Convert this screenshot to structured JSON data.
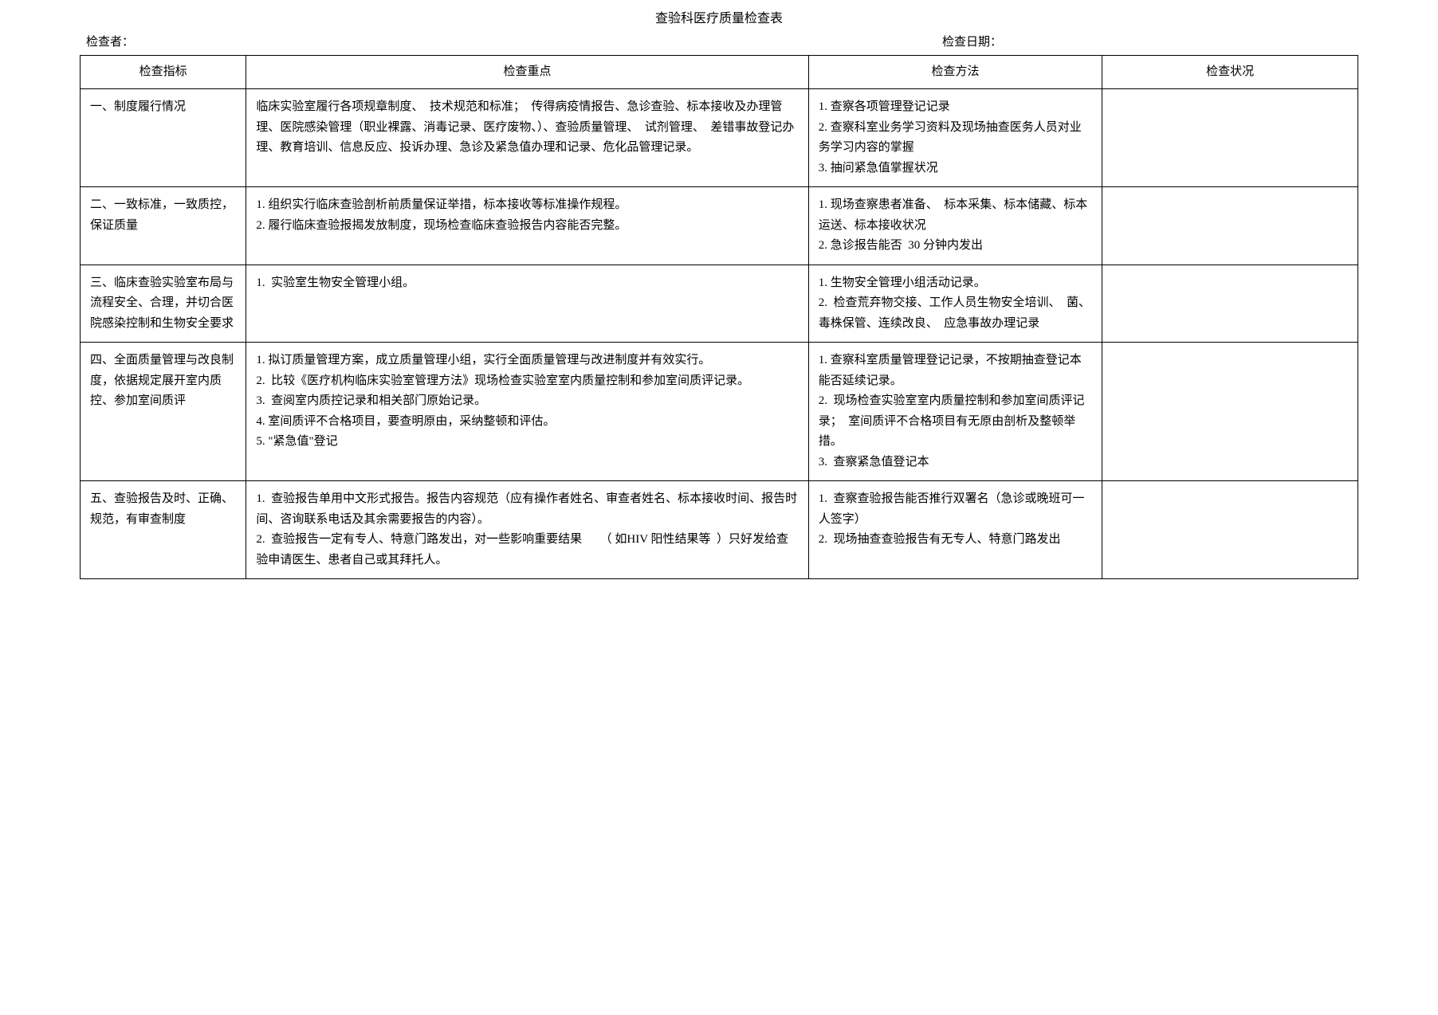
{
  "title": "查验科医疗质量检查表",
  "meta": {
    "inspector_label": "检查者：",
    "date_label": "检查日期："
  },
  "columns": {
    "c1": "检查指标",
    "c2": "检查重点",
    "c3": "检查方法",
    "c4": "检查状况"
  },
  "rows": [
    {
      "indicator": "一、制度履行情况",
      "focus": "临床实验室履行各项规章制度、  技术规范和标准；  传得病疫情报告、急诊查验、标本接收及办理管理、医院感染管理（职业裸露、消毒记录、医疗废物、）、查验质量管理、  试剂管理、  差错事故登记办理、教育培训、信息反应、投诉办理、急诊及紧急值办理和记录、危化品管理记录。",
      "method": "1. 查察各项管理登记记录\n2. 查察科室业务学习资料及现场抽查医务人员对业务学习内容的掌握\n3. 抽问紧急值掌握状况",
      "status": ""
    },
    {
      "indicator": "二、一致标准，一致质控，保证质量",
      "focus": "1. 组织实行临床查验剖析前质量保证举措，标本接收等标准操作规程。\n2. 履行临床查验报揭发放制度，现场检查临床查验报告内容能否完整。",
      "method": "1. 现场查察患者准备、  标本采集、标本储藏、标本运送、标本接收状况\n2. 急诊报告能否  30 分钟内发出",
      "status": ""
    },
    {
      "indicator": "三、临床查验实验室布局与流程安全、合理，并切合医院感染控制和生物安全要求",
      "focus": "1.  实验室生物安全管理小组。",
      "method": "1. 生物安全管理小组活动记录。\n2.  检查荒弃物交接、工作人员生物安全培训、  菌、毒株保管、连续改良、  应急事故办理记录",
      "status": ""
    },
    {
      "indicator": "四、全面质量管理与改良制度，依据规定展开室内质控、参加室间质评",
      "focus": "1. 拟订质量管理方案，成立质量管理小组，实行全面质量管理与改进制度并有效实行。\n2.  比较《医疗机构临床实验室管理方法》现场检查实验室室内质量控制和参加室间质评记录。\n3.  查阅室内质控记录和相关部门原始记录。\n4. 室间质评不合格项目，要查明原由，采纳整顿和评估。\n5. \"紧急值\"登记",
      "method": "1. 查察科室质量管理登记记录，不按期抽查登记本能否延续记录。\n2.  现场检查实验室室内质量控制和参加室间质评记录；  室间质评不合格项目有无原由剖析及整顿举措。\n3.  查察紧急值登记本",
      "status": ""
    },
    {
      "indicator": "五、查验报告及时、正确、  规范，有审查制度",
      "focus": "1.  查验报告单用中文形式报告。报告内容规范（应有操作者姓名、审查者姓名、标本接收时间、报告时间、咨询联系电话及其余需要报告的内容）。\n2.  查验报告一定有专人、特意门路发出，对一些影响重要结果      （ 如HIV 阳性结果等  ）只好发给查验申请医生、患者自己或其拜托人。",
      "method": "1.  查察查验报告能否推行双署名（急诊或晚班可一人签字）\n2.  现场抽查查验报告有无专人、特意门路发出",
      "status": ""
    }
  ]
}
